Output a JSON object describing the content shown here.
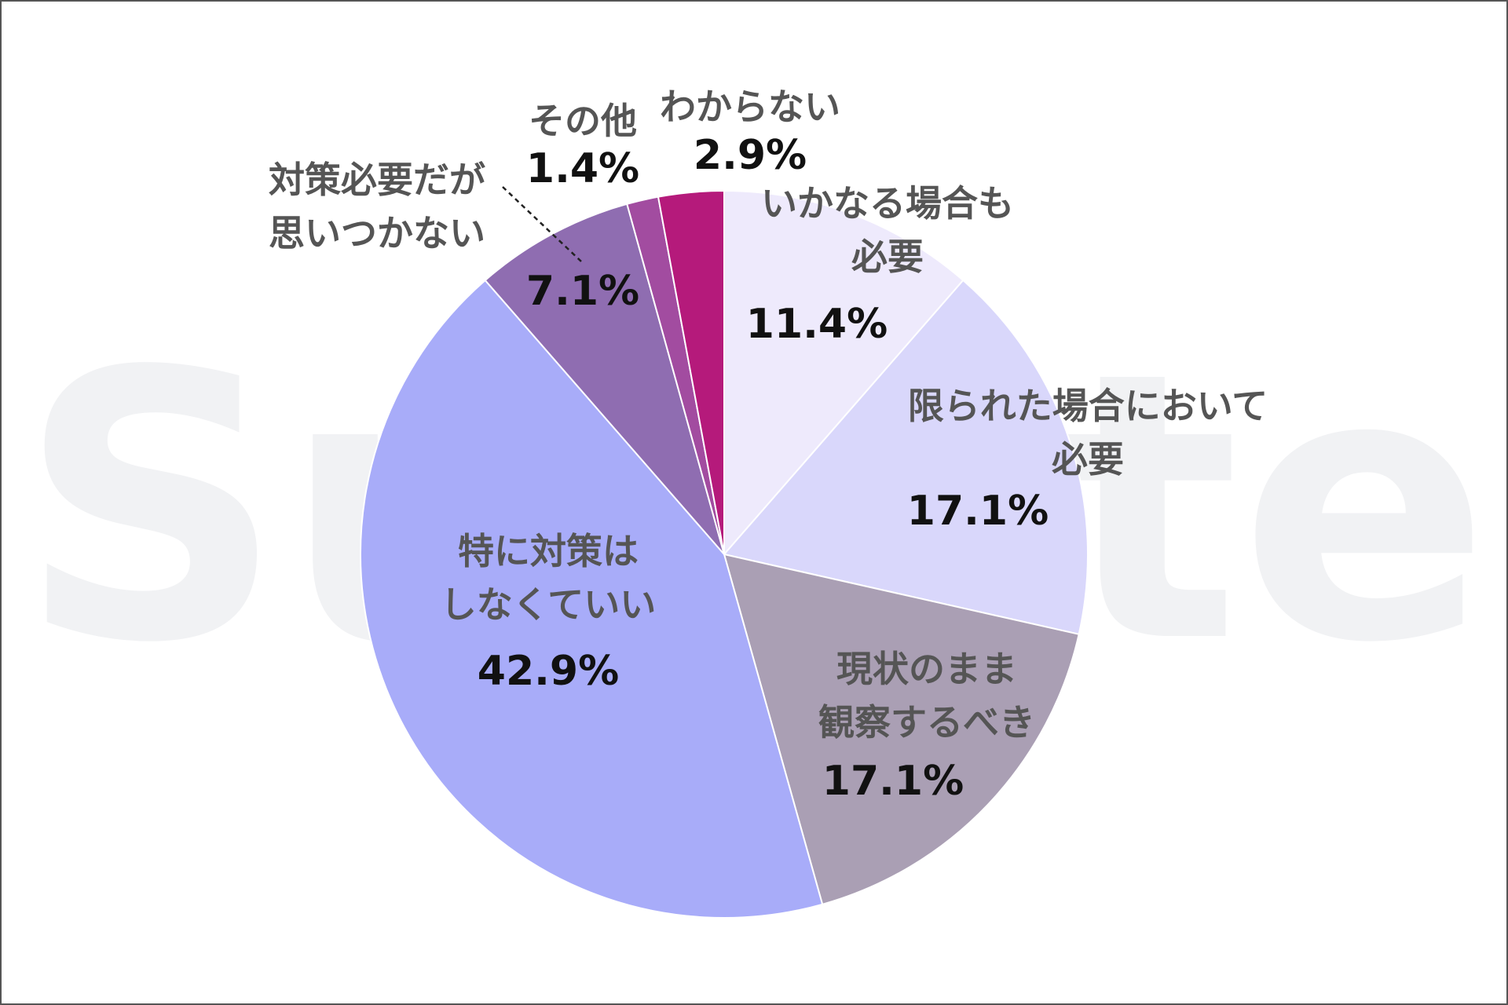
{
  "watermark": "Sunote",
  "chart_data": {
    "type": "pie",
    "start_angle": 0,
    "direction": "clockwise",
    "slices": [
      {
        "label_lines": [
          "いかなる場合も",
          "必要"
        ],
        "value": 11.4,
        "value_label": "11.4%",
        "color": "#eeeafc"
      },
      {
        "label_lines": [
          "限られた場合において",
          "必要"
        ],
        "value": 17.1,
        "value_label": "17.1%",
        "color": "#d9d7fb"
      },
      {
        "label_lines": [
          "現状のまま",
          "観察するべき"
        ],
        "value": 17.1,
        "value_label": "17.1%",
        "color": "#aa9fb4"
      },
      {
        "label_lines": [
          "特に対策は",
          "しなくていい"
        ],
        "value": 42.9,
        "value_label": "42.9%",
        "color": "#a8acf9"
      },
      {
        "label_lines": [
          "対策必要だが",
          "思いつかない"
        ],
        "value": 7.1,
        "value_label": "7.1%",
        "color": "#8f6db1"
      },
      {
        "label_lines": [
          "その他"
        ],
        "value": 1.4,
        "value_label": "1.4%",
        "color": "#a24ca0"
      },
      {
        "label_lines": [
          "わからない"
        ],
        "value": 2.9,
        "value_label": "2.9%",
        "color": "#b51a7b"
      }
    ]
  }
}
